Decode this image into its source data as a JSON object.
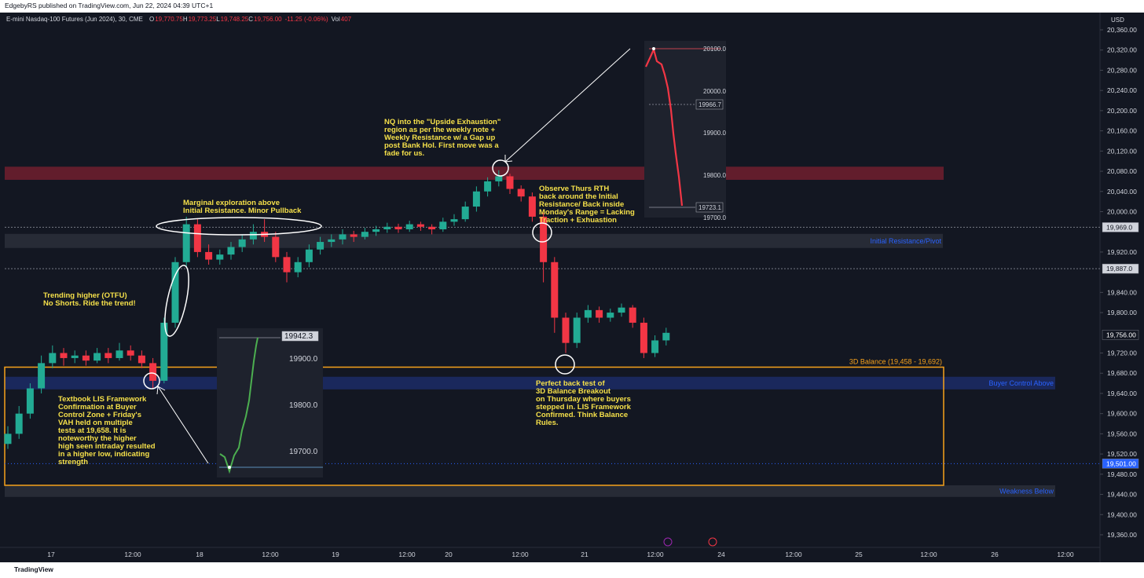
{
  "header": {
    "published": "EdgebyRS published on TradingView.com, Jun 22, 2024 04:39 UTC+1",
    "symbol": "E-mini Nasdaq-100 Futures (Jun 2024), 30, CME",
    "ohlc": [
      {
        "key": "O",
        "value": "19,770.75"
      },
      {
        "key": "H",
        "value": "19,773.25"
      },
      {
        "key": "L",
        "value": "19,748.25"
      },
      {
        "key": "C",
        "value": "19,756.00"
      }
    ],
    "change": "-11.25 (-0.06%)",
    "vol_key": "Vol",
    "vol": "407"
  },
  "currency": "USD",
  "ylim": [
    19320,
    20400
  ],
  "yticks": [
    {
      "value": 20360,
      "label": "20,360.00"
    },
    {
      "value": 20320,
      "label": "20,320.00"
    },
    {
      "value": 20280,
      "label": "20,280.00"
    },
    {
      "value": 20240,
      "label": "20,240.00"
    },
    {
      "value": 20200,
      "label": "20,200.00"
    },
    {
      "value": 20160,
      "label": "20,160.00"
    },
    {
      "value": 20120,
      "label": "20,120.00"
    },
    {
      "value": 20080,
      "label": "20,080.00"
    },
    {
      "value": 20040,
      "label": "20,040.00"
    },
    {
      "value": 20000,
      "label": "20,000.00"
    },
    {
      "value": 19920,
      "label": "19,920.00"
    },
    {
      "value": 19840,
      "label": "19,840.00"
    },
    {
      "value": 19800,
      "label": "19,800.00"
    },
    {
      "value": 19720,
      "label": "19,720.00"
    },
    {
      "value": 19680,
      "label": "19,680.00"
    },
    {
      "value": 19640,
      "label": "19,640.00"
    },
    {
      "value": 19600,
      "label": "19,600.00"
    },
    {
      "value": 19560,
      "label": "19,560.00"
    },
    {
      "value": 19520,
      "label": "19,520.00"
    },
    {
      "value": 19480,
      "label": "19,480.00"
    },
    {
      "value": 19440,
      "label": "19,440.00"
    },
    {
      "value": 19400,
      "label": "19,400.00"
    },
    {
      "value": 19360,
      "label": "19,360.00"
    }
  ],
  "price_markers": [
    {
      "value": 19969,
      "label": "19,969.0",
      "color": "#d1d4dc",
      "text_color": "#131722",
      "line": "dashed"
    },
    {
      "value": 19887,
      "label": "19,887.0",
      "color": "#d1d4dc",
      "text_color": "#131722",
      "line": "dashed"
    },
    {
      "value": 19756,
      "label": "19,756.00",
      "color": "#131722",
      "text_color": "#ffffff",
      "line": "none"
    },
    {
      "value": 19501,
      "label": "19,501.00",
      "color": "#2962ff",
      "text_color": "#ffffff",
      "line": "dotted"
    }
  ],
  "time_labels": [
    "17",
    "12:00",
    "18",
    "12:00",
    "19",
    "12:00",
    "20",
    "12:00",
    "21",
    "12:00",
    "24",
    "12:00",
    "25",
    "12:00",
    "26",
    "12:00"
  ],
  "zones": [
    {
      "low": 20063,
      "high": 20089,
      "color": "#6b1e2e"
    },
    {
      "label": "Initial Resistance/Pivot",
      "low": 19928,
      "high": 19956,
      "color": "#2a2e39",
      "label_color": "#2962ff"
    },
    {
      "label": "Buyer Control Above",
      "low": 19648,
      "high": 19673,
      "color": "#1c2a63",
      "label_color": "#2962ff"
    },
    {
      "label": "Weakness Below",
      "low": 19435,
      "high": 19458,
      "color": "#2a2e39",
      "label_color": "#2962ff"
    },
    {
      "label": "3D Balance (19,458 - 19,692)",
      "low": 19458,
      "high": 19692,
      "color": "#f7a21b",
      "outline": true,
      "label_color": "#f7a21b"
    }
  ],
  "annotations": [
    {
      "lines": [
        "NQ into the \"Upside Exhaustion\"",
        "region as per the weekly note +",
        "Weekly Resistance w/ a Gap up",
        "post Bank Hol. First move was a",
        "fade for us."
      ]
    },
    {
      "lines": [
        "Marginal exploration above",
        "Initial Resistance. Minor Pullback"
      ]
    },
    {
      "lines": [
        "Trending higher (OTFU)",
        "No Shorts. Ride the trend!"
      ]
    },
    {
      "lines": [
        "Textbook LIS Framework",
        "Confirmation at Buyer",
        "Control Zone + Friday's",
        "VAH held on multiple",
        "tests at 19,658. It is",
        "noteworthy the higher",
        "high seen intraday resulted",
        "in a higher low, indicating",
        "strength"
      ]
    },
    {
      "lines": [
        "Observe Thurs RTH",
        "back around the Initial",
        "Resistance/ Back inside",
        "Monday's Range = Lacking",
        "Traction + Exhuastion"
      ]
    },
    {
      "lines": [
        "Perfect back test of",
        "3D Balance Breakout",
        "on Thursday where buyers",
        "stepped in. LIS Framework",
        "Confirmed. Think Balance",
        "Rules."
      ]
    }
  ],
  "insets": [
    {
      "labels": [
        {
          "text": "19942.3",
          "boxed": true
        },
        {
          "text": "19900.0"
        },
        {
          "text": "19800.0"
        },
        {
          "text": "19700.0"
        }
      ]
    },
    {
      "labels": [
        {
          "text": "20100.0"
        },
        {
          "text": "20000.0"
        },
        {
          "text": "19966.7",
          "boxed": true
        },
        {
          "text": "19900.0"
        },
        {
          "text": "19800.0"
        },
        {
          "text": "19723.1",
          "boxed": true
        },
        {
          "text": "19700.0"
        }
      ]
    }
  ],
  "candles": [
    [
      19540,
      19575,
      19530,
      19560
    ],
    [
      19560,
      19615,
      19550,
      19600
    ],
    [
      19600,
      19660,
      19590,
      19650
    ],
    [
      19650,
      19715,
      19640,
      19700
    ],
    [
      19700,
      19735,
      19690,
      19720
    ],
    [
      19720,
      19730,
      19695,
      19710
    ],
    [
      19710,
      19725,
      19700,
      19715
    ],
    [
      19715,
      19725,
      19695,
      19705
    ],
    [
      19705,
      19730,
      19700,
      19720
    ],
    [
      19720,
      19730,
      19700,
      19710
    ],
    [
      19710,
      19740,
      19705,
      19725
    ],
    [
      19725,
      19735,
      19705,
      19715
    ],
    [
      19715,
      19725,
      19690,
      19700
    ],
    [
      19700,
      19710,
      19650,
      19665
    ],
    [
      19665,
      19790,
      19660,
      19780
    ],
    [
      19780,
      19910,
      19770,
      19900
    ],
    [
      19900,
      19990,
      19890,
      19975
    ],
    [
      19975,
      19985,
      19910,
      19920
    ],
    [
      19920,
      19935,
      19895,
      19905
    ],
    [
      19905,
      19925,
      19895,
      19915
    ],
    [
      19915,
      19940,
      19905,
      19930
    ],
    [
      19930,
      19955,
      19920,
      19945
    ],
    [
      19945,
      19975,
      19935,
      19960
    ],
    [
      19960,
      19985,
      19940,
      19950
    ],
    [
      19950,
      19960,
      19900,
      19910
    ],
    [
      19910,
      19920,
      19860,
      19880
    ],
    [
      19880,
      19910,
      19870,
      19900
    ],
    [
      19900,
      19935,
      19890,
      19925
    ],
    [
      19925,
      19950,
      19915,
      19940
    ],
    [
      19940,
      19955,
      19930,
      19945
    ],
    [
      19945,
      19965,
      19935,
      19955
    ],
    [
      19955,
      19962,
      19940,
      19950
    ],
    [
      19950,
      19968,
      19945,
      19960
    ],
    [
      19960,
      19972,
      19952,
      19965
    ],
    [
      19965,
      19978,
      19958,
      19970
    ],
    [
      19970,
      19976,
      19958,
      19965
    ],
    [
      19965,
      19982,
      19960,
      19975
    ],
    [
      19975,
      19980,
      19962,
      19970
    ],
    [
      19970,
      19975,
      19955,
      19965
    ],
    [
      19965,
      19988,
      19960,
      19980
    ],
    [
      19980,
      19995,
      19972,
      19985
    ],
    [
      19985,
      20020,
      19980,
      20010
    ],
    [
      20010,
      20050,
      20000,
      20040
    ],
    [
      20040,
      20068,
      20030,
      20060
    ],
    [
      20060,
      20082,
      20050,
      20070
    ],
    [
      20070,
      20075,
      20035,
      20045
    ],
    [
      20045,
      20052,
      20020,
      20030
    ],
    [
      20030,
      20038,
      19980,
      19990
    ],
    [
      19990,
      19998,
      19860,
      19900
    ],
    [
      19900,
      19910,
      19760,
      19790
    ],
    [
      19790,
      19800,
      19720,
      19740
    ],
    [
      19740,
      19800,
      19730,
      19790
    ],
    [
      19790,
      19815,
      19780,
      19805
    ],
    [
      19805,
      19812,
      19780,
      19790
    ],
    [
      19790,
      19808,
      19782,
      19800
    ],
    [
      19800,
      19818,
      19792,
      19810
    ],
    [
      19810,
      19815,
      19770,
      19780
    ],
    [
      19780,
      19790,
      19710,
      19720
    ],
    [
      19720,
      19755,
      19712,
      19745
    ],
    [
      19745,
      19770,
      19735,
      19760
    ]
  ],
  "up_color": "#22ab94",
  "down_color": "#f23645",
  "footer": "TradingView"
}
